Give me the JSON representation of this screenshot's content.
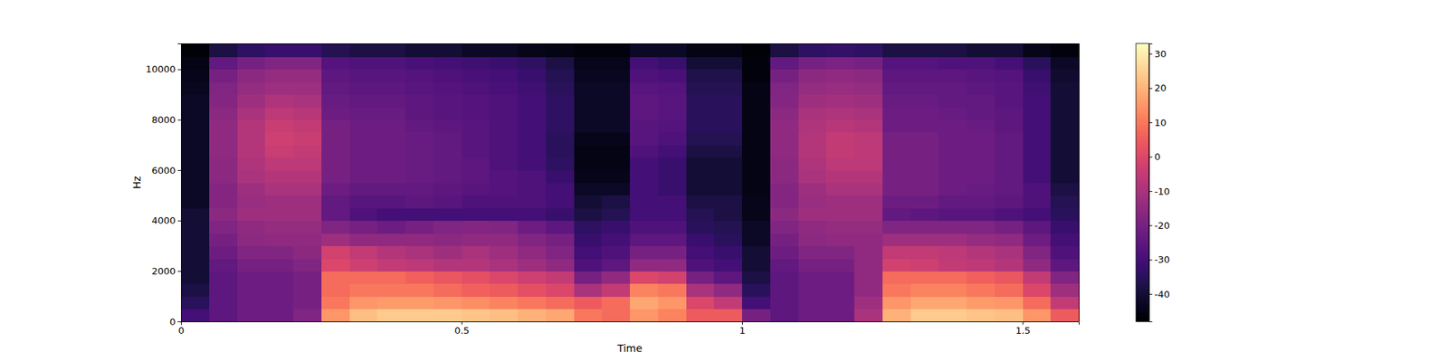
{
  "chart_data": {
    "type": "heatmap",
    "x_label": "Time",
    "y_label": "Hz",
    "xlim": [
      0,
      1.6
    ],
    "xticks": [
      0,
      0.5,
      1,
      1.5
    ],
    "ylim": [
      0,
      11025
    ],
    "yticks": [
      0,
      2000,
      4000,
      6000,
      8000,
      10000
    ],
    "x": [
      0,
      0.05,
      0.1,
      0.15,
      0.2,
      0.25,
      0.3,
      0.35,
      0.4,
      0.45,
      0.5,
      0.55,
      0.6,
      0.65,
      0.7,
      0.75,
      0.8,
      0.85,
      0.9,
      0.95,
      1.0,
      1.05,
      1.1,
      1.15,
      1.2,
      1.25,
      1.3,
      1.35,
      1.4,
      1.45,
      1.5,
      1.55,
      1.6
    ],
    "y": [
      0,
      500,
      1000,
      1500,
      2000,
      2500,
      3000,
      3500,
      4000,
      4500,
      5000,
      5500,
      6000,
      6500,
      7000,
      7500,
      8000,
      8500,
      9000,
      9500,
      10000,
      10500,
      11025
    ],
    "z": [
      [
        -30,
        -25,
        -22,
        -22,
        -18,
        15,
        22,
        24,
        24,
        24,
        23,
        22,
        20,
        18,
        10,
        8,
        15,
        12,
        5,
        5,
        -20,
        -25,
        -22,
        -22,
        -10,
        20,
        24,
        24,
        23,
        22,
        15,
        5
      ],
      [
        -35,
        -25,
        -22,
        -22,
        -20,
        10,
        15,
        16,
        16,
        15,
        14,
        12,
        10,
        8,
        5,
        8,
        18,
        15,
        0,
        -5,
        -30,
        -25,
        -22,
        -22,
        -12,
        15,
        18,
        18,
        16,
        15,
        8,
        -5
      ],
      [
        -38,
        -25,
        -22,
        -22,
        -20,
        8,
        10,
        10,
        10,
        8,
        6,
        5,
        2,
        0,
        -10,
        -5,
        12,
        10,
        -10,
        -15,
        -35,
        -25,
        -22,
        -22,
        -15,
        10,
        12,
        12,
        10,
        8,
        0,
        -12
      ],
      [
        -40,
        -25,
        -22,
        -22,
        -20,
        8,
        8,
        8,
        6,
        4,
        2,
        0,
        -3,
        -5,
        -20,
        -15,
        0,
        -2,
        -20,
        -25,
        -38,
        -25,
        -22,
        -22,
        -15,
        8,
        8,
        8,
        6,
        4,
        -5,
        -18
      ],
      [
        -40,
        -24,
        -20,
        -20,
        -18,
        0,
        -3,
        -5,
        -6,
        -8,
        -8,
        -10,
        -12,
        -15,
        -28,
        -25,
        -15,
        -15,
        -28,
        -30,
        -40,
        -24,
        -20,
        -20,
        -15,
        -2,
        -3,
        -5,
        -6,
        -8,
        -15,
        -25
      ],
      [
        -40,
        -22,
        -18,
        -18,
        -16,
        -2,
        -5,
        -8,
        -10,
        -12,
        -10,
        -12,
        -15,
        -18,
        -30,
        -28,
        -20,
        -20,
        -30,
        -32,
        -40,
        -22,
        -18,
        -18,
        -15,
        -5,
        -5,
        -6,
        -8,
        -10,
        -18,
        -28
      ],
      [
        -40,
        -20,
        -16,
        -15,
        -15,
        -12,
        -15,
        -15,
        -15,
        -16,
        -15,
        -15,
        -18,
        -20,
        -32,
        -30,
        -25,
        -25,
        -32,
        -35,
        -42,
        -20,
        -16,
        -15,
        -15,
        -12,
        -12,
        -12,
        -14,
        -15,
        -22,
        -30
      ],
      [
        -40,
        -18,
        -15,
        -14,
        -14,
        -18,
        -20,
        -22,
        -20,
        -18,
        -17,
        -18,
        -22,
        -25,
        -34,
        -32,
        -28,
        -28,
        -35,
        -36,
        -42,
        -18,
        -15,
        -14,
        -14,
        -18,
        -18,
        -18,
        -18,
        -20,
        -25,
        -32
      ],
      [
        -40,
        -16,
        -12,
        -12,
        -12,
        -24,
        -28,
        -30,
        -30,
        -30,
        -30,
        -30,
        -30,
        -32,
        -38,
        -36,
        -30,
        -30,
        -36,
        -38,
        -44,
        -16,
        -12,
        -12,
        -12,
        -24,
        -25,
        -26,
        -26,
        -28,
        -30,
        -35
      ],
      [
        -42,
        -17,
        -13,
        -12,
        -12,
        -24,
        -26,
        -26,
        -25,
        -26,
        -28,
        -28,
        -28,
        -30,
        -40,
        -38,
        -30,
        -30,
        -38,
        -38,
        -44,
        -17,
        -13,
        -12,
        -12,
        -22,
        -22,
        -24,
        -24,
        -25,
        -28,
        -36
      ],
      [
        -42,
        -17,
        -12,
        -10,
        -10,
        -22,
        -24,
        -24,
        -24,
        -25,
        -26,
        -27,
        -28,
        -30,
        -42,
        -42,
        -30,
        -32,
        -40,
        -40,
        -45,
        -17,
        -12,
        -10,
        -10,
        -20,
        -20,
        -22,
        -23,
        -24,
        -28,
        -38
      ],
      [
        -42,
        -16,
        -10,
        -8,
        -8,
        -20,
        -22,
        -22,
        -23,
        -24,
        -25,
        -27,
        -28,
        -32,
        -44,
        -44,
        -30,
        -32,
        -40,
        -40,
        -45,
        -16,
        -10,
        -8,
        -8,
        -20,
        -20,
        -22,
        -22,
        -24,
        -30,
        -40
      ],
      [
        -42,
        -16,
        -9,
        -6,
        -6,
        -20,
        -22,
        -22,
        -23,
        -24,
        -25,
        -28,
        -30,
        -34,
        -45,
        -45,
        -30,
        -32,
        -40,
        -40,
        -45,
        -16,
        -9,
        -6,
        -6,
        -20,
        -20,
        -22,
        -22,
        -24,
        -30,
        -40
      ],
      [
        -42,
        -15,
        -8,
        -4,
        -5,
        -20,
        -22,
        -22,
        -23,
        -24,
        -26,
        -28,
        -30,
        -35,
        -45,
        -45,
        -28,
        -30,
        -38,
        -38,
        -45,
        -15,
        -8,
        -5,
        -6,
        -20,
        -20,
        -22,
        -22,
        -24,
        -30,
        -40
      ],
      [
        -42,
        -15,
        -8,
        -3,
        -4,
        -20,
        -22,
        -22,
        -23,
        -24,
        -26,
        -28,
        -30,
        -35,
        -44,
        -44,
        -26,
        -28,
        -36,
        -36,
        -45,
        -15,
        -8,
        -5,
        -6,
        -20,
        -20,
        -22,
        -22,
        -24,
        -30,
        -40
      ],
      [
        -42,
        -15,
        -8,
        -4,
        -5,
        -20,
        -22,
        -22,
        -24,
        -25,
        -26,
        -28,
        -30,
        -34,
        -42,
        -42,
        -26,
        -27,
        -35,
        -35,
        -45,
        -15,
        -9,
        -7,
        -8,
        -22,
        -22,
        -22,
        -23,
        -25,
        -30,
        -40
      ],
      [
        -42,
        -16,
        -10,
        -6,
        -7,
        -22,
        -23,
        -23,
        -25,
        -26,
        -27,
        -28,
        -30,
        -34,
        -42,
        -42,
        -25,
        -26,
        -35,
        -35,
        -45,
        -16,
        -10,
        -9,
        -10,
        -22,
        -22,
        -23,
        -24,
        -25,
        -30,
        -40
      ],
      [
        -42,
        -17,
        -12,
        -9,
        -10,
        -23,
        -24,
        -24,
        -25,
        -26,
        -27,
        -28,
        -30,
        -34,
        -42,
        -42,
        -25,
        -26,
        -35,
        -35,
        -45,
        -17,
        -12,
        -11,
        -12,
        -23,
        -23,
        -24,
        -24,
        -26,
        -30,
        -40
      ],
      [
        -43,
        -18,
        -14,
        -12,
        -12,
        -24,
        -25,
        -25,
        -26,
        -27,
        -28,
        -29,
        -31,
        -35,
        -42,
        -42,
        -26,
        -27,
        -36,
        -36,
        -45,
        -18,
        -14,
        -13,
        -14,
        -24,
        -24,
        -24,
        -25,
        -26,
        -31,
        -40
      ],
      [
        -44,
        -20,
        -16,
        -14,
        -14,
        -25,
        -26,
        -26,
        -27,
        -28,
        -29,
        -30,
        -32,
        -36,
        -43,
        -43,
        -28,
        -29,
        -37,
        -37,
        -46,
        -20,
        -16,
        -15,
        -16,
        -25,
        -25,
        -25,
        -26,
        -27,
        -32,
        -41
      ],
      [
        -45,
        -24,
        -20,
        -18,
        -18,
        -27,
        -28,
        -28,
        -29,
        -30,
        -31,
        -32,
        -34,
        -38,
        -44,
        -44,
        -30,
        -32,
        -40,
        -40,
        -46,
        -24,
        -20,
        -19,
        -20,
        -27,
        -27,
        -28,
        -28,
        -30,
        -35,
        -42
      ],
      [
        -47,
        -38,
        -34,
        -32,
        -32,
        -36,
        -38,
        -38,
        -40,
        -40,
        -42,
        -42,
        -44,
        -45,
        -46,
        -46,
        -42,
        -42,
        -45,
        -45,
        -47,
        -38,
        -34,
        -33,
        -34,
        -38,
        -38,
        -38,
        -40,
        -40,
        -44,
        -46
      ]
    ],
    "colorbar": {
      "range": [
        -48,
        33
      ],
      "ticks": [
        -40,
        -30,
        -20,
        -10,
        0,
        10,
        20,
        30
      ]
    }
  }
}
